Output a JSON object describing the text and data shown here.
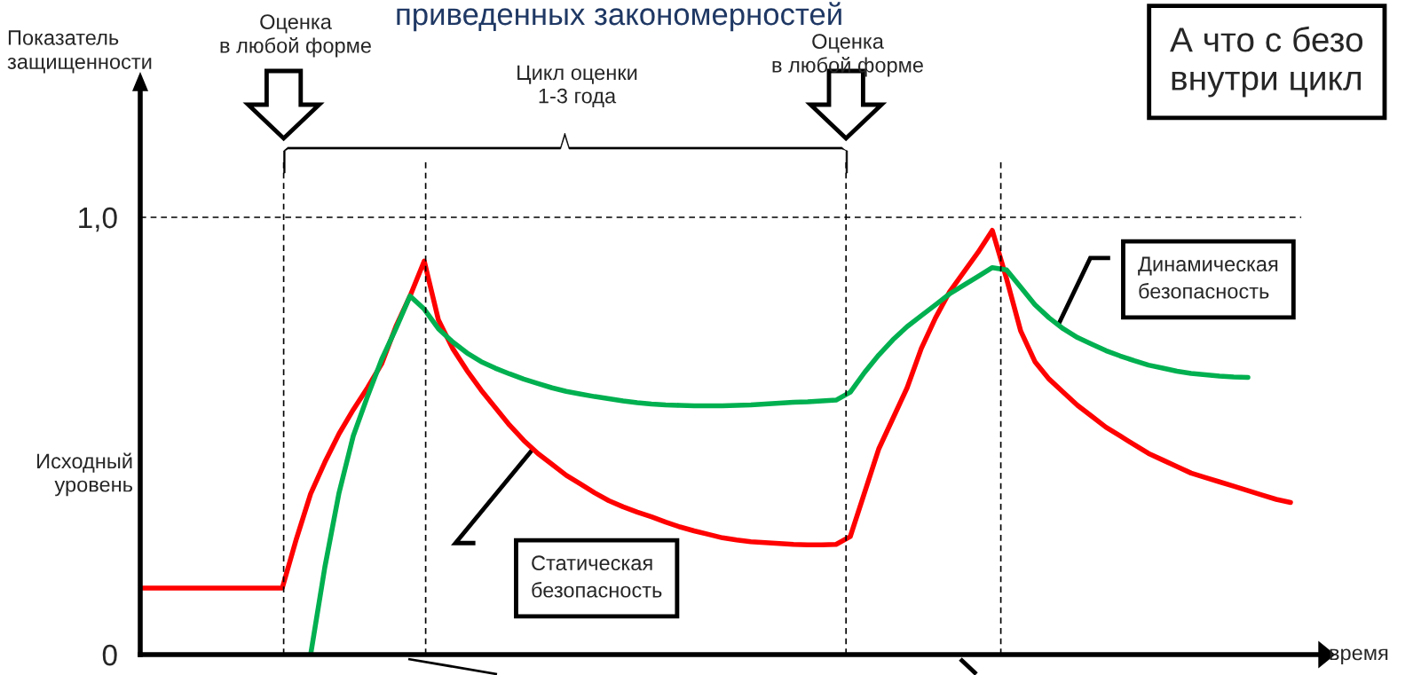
{
  "chart_data": {
    "type": "line",
    "title": "приведенных закономерностей",
    "ylabel": "Показатель\nзащищенности",
    "xlabel": "время",
    "categories": [
      null,
      null,
      null,
      null,
      null,
      null,
      null,
      null,
      null,
      null,
      null,
      null,
      null,
      null,
      null,
      null,
      null,
      null,
      null,
      null,
      null,
      null,
      null,
      null,
      null,
      null,
      null,
      null,
      null,
      null,
      null,
      null,
      null,
      null,
      null,
      null,
      null,
      null,
      null,
      null,
      null,
      null,
      null,
      null,
      null,
      null,
      null,
      null,
      null,
      null,
      null,
      null,
      null,
      null,
      null,
      null,
      null,
      null,
      null,
      null,
      null,
      null,
      null,
      null,
      null,
      null,
      null,
      null,
      null,
      null,
      null,
      null,
      null,
      null,
      null,
      null,
      null,
      null,
      null,
      null,
      null,
      null,
      null,
      null
    ],
    "ylim": [
      0,
      1.29
    ],
    "yticks": [
      0,
      {
        "value": 1.0,
        "label": "1,0"
      }
    ],
    "tick_labels": "y",
    "grid": false,
    "legend": false,
    "marker": "none",
    "line_style": "solid",
    "series": [
      {
        "name": "Статическая\nбезопасность",
        "color": "#ff0000",
        "values": [
          0.152,
          0.152,
          0.152,
          0.152,
          0.152,
          0.152,
          0.152,
          0.152,
          0.152,
          0.152,
          0.152,
          0.265,
          0.368,
          0.44,
          0.505,
          0.56,
          0.61,
          0.665,
          0.75,
          0.82,
          0.9,
          0.765,
          0.7,
          0.65,
          0.605,
          0.565,
          0.525,
          0.49,
          0.46,
          0.435,
          0.41,
          0.39,
          0.37,
          0.352,
          0.338,
          0.326,
          0.315,
          0.303,
          0.292,
          0.283,
          0.275,
          0.267,
          0.262,
          0.258,
          0.256,
          0.254,
          0.252,
          0.251,
          0.251,
          0.252,
          0.27,
          0.37,
          0.47,
          0.54,
          0.61,
          0.7,
          0.77,
          0.83,
          0.875,
          0.92,
          0.97,
          0.86,
          0.74,
          0.67,
          0.63,
          0.6,
          0.57,
          0.545,
          0.52,
          0.5,
          0.48,
          0.46,
          0.445,
          0.43,
          0.415,
          0.405,
          0.395,
          0.385,
          0.375,
          0.365,
          0.355,
          0.348,
          null,
          null
        ]
      },
      {
        "name": "Динамическая\nбезопасность",
        "color": "#00b050",
        "values": [
          null,
          null,
          null,
          null,
          null,
          null,
          null,
          null,
          null,
          null,
          null,
          null,
          0,
          0.2,
          0.37,
          0.5,
          0.59,
          0.675,
          0.745,
          0.82,
          0.79,
          0.745,
          0.715,
          0.69,
          0.67,
          0.655,
          0.642,
          0.63,
          0.62,
          0.61,
          0.602,
          0.596,
          0.59,
          0.585,
          0.58,
          0.576,
          0.573,
          0.571,
          0.57,
          0.569,
          0.569,
          0.569,
          0.57,
          0.571,
          0.573,
          0.575,
          0.577,
          0.578,
          0.58,
          0.582,
          0.6,
          0.645,
          0.685,
          0.72,
          0.75,
          0.775,
          0.8,
          0.825,
          0.845,
          0.865,
          0.885,
          0.88,
          0.84,
          0.8,
          0.77,
          0.745,
          0.725,
          0.71,
          0.695,
          0.683,
          0.672,
          0.662,
          0.655,
          0.648,
          0.643,
          0.64,
          0.637,
          0.635,
          0.634,
          null,
          null,
          null,
          null,
          null
        ]
      }
    ],
    "ref_lines": [
      {
        "axis": "y",
        "value": 1.0,
        "color": "#000000",
        "line_style": "dashed"
      }
    ],
    "annotations": [
      "Исходный\nуровень",
      "Оценка\nв любой форме",
      "Цикл оценки\n1-3 года",
      "Оценка\nв любой форме",
      "А что с безо\nвнутри цикл"
    ]
  }
}
